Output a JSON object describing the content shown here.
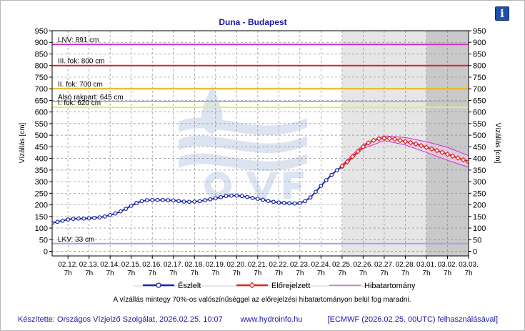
{
  "chart_data": {
    "type": "line",
    "title": "Duna - Budapest",
    "ylabel_left": "Vízállás [cm]",
    "ylabel_right": "Vízállás [cm]",
    "ylim": [
      -20,
      950
    ],
    "yticks": [
      0,
      50,
      100,
      150,
      200,
      250,
      300,
      350,
      400,
      450,
      500,
      550,
      600,
      650,
      700,
      750,
      800,
      850,
      900,
      950
    ],
    "x_range_days": [
      "2026-02-11 13:00",
      "2026-03-03 07:00"
    ],
    "x_tick_labels": [
      {
        "date": "02.12.",
        "hour": "7h"
      },
      {
        "date": "02.13.",
        "hour": "7h"
      },
      {
        "date": "02.14.",
        "hour": "7h"
      },
      {
        "date": "02.15.",
        "hour": "7h"
      },
      {
        "date": "02.16.",
        "hour": "7h"
      },
      {
        "date": "02.17.",
        "hour": "7h"
      },
      {
        "date": "02.18.",
        "hour": "7h"
      },
      {
        "date": "02.19.",
        "hour": "7h"
      },
      {
        "date": "02.20.",
        "hour": "7h"
      },
      {
        "date": "02.21.",
        "hour": "7h"
      },
      {
        "date": "02.22.",
        "hour": "7h"
      },
      {
        "date": "02.23.",
        "hour": "7h"
      },
      {
        "date": "02.24.",
        "hour": "7h"
      },
      {
        "date": "02.25.",
        "hour": "7h"
      },
      {
        "date": "02.26.",
        "hour": "7h"
      },
      {
        "date": "02.27.",
        "hour": "7h"
      },
      {
        "date": "02.28.",
        "hour": "7h"
      },
      {
        "date": "03.01.",
        "hour": "7h"
      },
      {
        "date": "03.02.",
        "hour": "7h"
      },
      {
        "date": "03.03.",
        "hour": "7h"
      }
    ],
    "grid": true,
    "forecast_shading": [
      {
        "from": "2026-02-25 07:00",
        "to": "2026-03-01 07:00",
        "color": "#e6e6e6"
      },
      {
        "from": "2026-03-01 07:00",
        "to": "2026-03-03 07:00",
        "color": "#c9c9c9"
      }
    ],
    "thresholds": [
      {
        "label": "LNV: 891 cm",
        "value": 891,
        "color": "#cc33cc"
      },
      {
        "label": "III. fok: 800 cm",
        "value": 800,
        "color": "#dd2222"
      },
      {
        "label": "II. fok: 700 cm",
        "value": 700,
        "color": "#e8b923"
      },
      {
        "label": "Alsó rakpart: 645 cm",
        "value": 645,
        "color": "#9ad27a"
      },
      {
        "label": "I. fok: 620 cm",
        "value": 620,
        "color": "#e8e86a"
      },
      {
        "label": "LKV: 33 cm",
        "value": 33,
        "color": "#9aa8f0"
      }
    ],
    "series": [
      {
        "name": "Észlelt",
        "color": "#1a2aa8",
        "x": [
          "2026-02-11 13:00",
          "2026-02-11 19:00",
          "2026-02-12 01:00",
          "2026-02-12 07:00",
          "2026-02-12 13:00",
          "2026-02-12 19:00",
          "2026-02-13 01:00",
          "2026-02-13 07:00",
          "2026-02-13 13:00",
          "2026-02-13 19:00",
          "2026-02-14 01:00",
          "2026-02-14 07:00",
          "2026-02-14 13:00",
          "2026-02-14 19:00",
          "2026-02-15 01:00",
          "2026-02-15 07:00",
          "2026-02-15 13:00",
          "2026-02-15 19:00",
          "2026-02-16 01:00",
          "2026-02-16 07:00",
          "2026-02-16 13:00",
          "2026-02-16 19:00",
          "2026-02-17 01:00",
          "2026-02-17 07:00",
          "2026-02-17 13:00",
          "2026-02-17 19:00",
          "2026-02-18 01:00",
          "2026-02-18 07:00",
          "2026-02-18 13:00",
          "2026-02-18 19:00",
          "2026-02-19 01:00",
          "2026-02-19 07:00",
          "2026-02-19 13:00",
          "2026-02-19 19:00",
          "2026-02-20 01:00",
          "2026-02-20 07:00",
          "2026-02-20 13:00",
          "2026-02-20 19:00",
          "2026-02-21 01:00",
          "2026-02-21 07:00",
          "2026-02-21 13:00",
          "2026-02-21 19:00",
          "2026-02-22 01:00",
          "2026-02-22 07:00",
          "2026-02-22 13:00",
          "2026-02-22 19:00",
          "2026-02-23 01:00",
          "2026-02-23 07:00",
          "2026-02-23 13:00",
          "2026-02-23 19:00",
          "2026-02-24 01:00",
          "2026-02-24 07:00",
          "2026-02-24 13:00",
          "2026-02-24 19:00",
          "2026-02-25 01:00",
          "2026-02-25 07:00"
        ],
        "values": [
          122,
          127,
          132,
          137,
          140,
          141,
          141,
          142,
          144,
          146,
          150,
          156,
          163,
          172,
          183,
          196,
          208,
          216,
          220,
          221,
          221,
          221,
          220,
          219,
          217,
          214,
          213,
          214,
          216,
          220,
          224,
          228,
          233,
          238,
          240,
          240,
          238,
          234,
          230,
          226,
          222,
          217,
          213,
          210,
          208,
          207,
          206,
          208,
          216,
          232,
          256,
          282,
          306,
          329,
          349,
          365
        ]
      },
      {
        "name": "Előrejelzett",
        "color": "#d82a1a",
        "x": [
          "2026-02-25 07:00",
          "2026-02-25 13:00",
          "2026-02-25 19:00",
          "2026-02-26 01:00",
          "2026-02-26 07:00",
          "2026-02-26 13:00",
          "2026-02-26 19:00",
          "2026-02-27 01:00",
          "2026-02-27 07:00",
          "2026-02-27 13:00",
          "2026-02-27 19:00",
          "2026-02-28 01:00",
          "2026-02-28 07:00",
          "2026-02-28 13:00",
          "2026-02-28 19:00",
          "2026-03-01 01:00",
          "2026-03-01 07:00",
          "2026-03-01 13:00",
          "2026-03-01 19:00",
          "2026-03-02 01:00",
          "2026-03-02 07:00",
          "2026-03-02 13:00",
          "2026-03-02 19:00",
          "2026-03-03 01:00",
          "2026-03-03 07:00"
        ],
        "values": [
          367,
          386,
          408,
          430,
          450,
          467,
          478,
          485,
          487,
          486,
          483,
          478,
          473,
          468,
          462,
          455,
          448,
          441,
          434,
          426,
          418,
          410,
          402,
          394,
          386
        ]
      },
      {
        "name": "Hibatartomány",
        "color": "#cc33cc",
        "x": [
          "2026-02-25 07:00",
          "2026-02-26 07:00",
          "2026-02-27 07:00",
          "2026-02-28 07:00",
          "2026-03-01 07:00",
          "2026-03-02 07:00",
          "2026-03-03 07:00"
        ],
        "upper": [
          372,
          460,
          497,
          490,
          472,
          448,
          412
        ],
        "lower": [
          362,
          442,
          477,
          458,
          426,
          392,
          362
        ]
      }
    ],
    "legend_placement": "bottom"
  },
  "note": "A vízállás mintegy 70%-os valószínűséggel az előrejelzési hibatartományon belül fog maradni.",
  "footer": {
    "author": "Készítette: Országos Vízjelző Szolgálat, 2026.02.25. 10:07",
    "website": "www.hydroinfo.hu",
    "model": "[ECMWF (2026.02.25. 00UTC) felhasználásával]"
  },
  "watermark": "OVF",
  "info_icon": "info-icon",
  "info_label": "i"
}
